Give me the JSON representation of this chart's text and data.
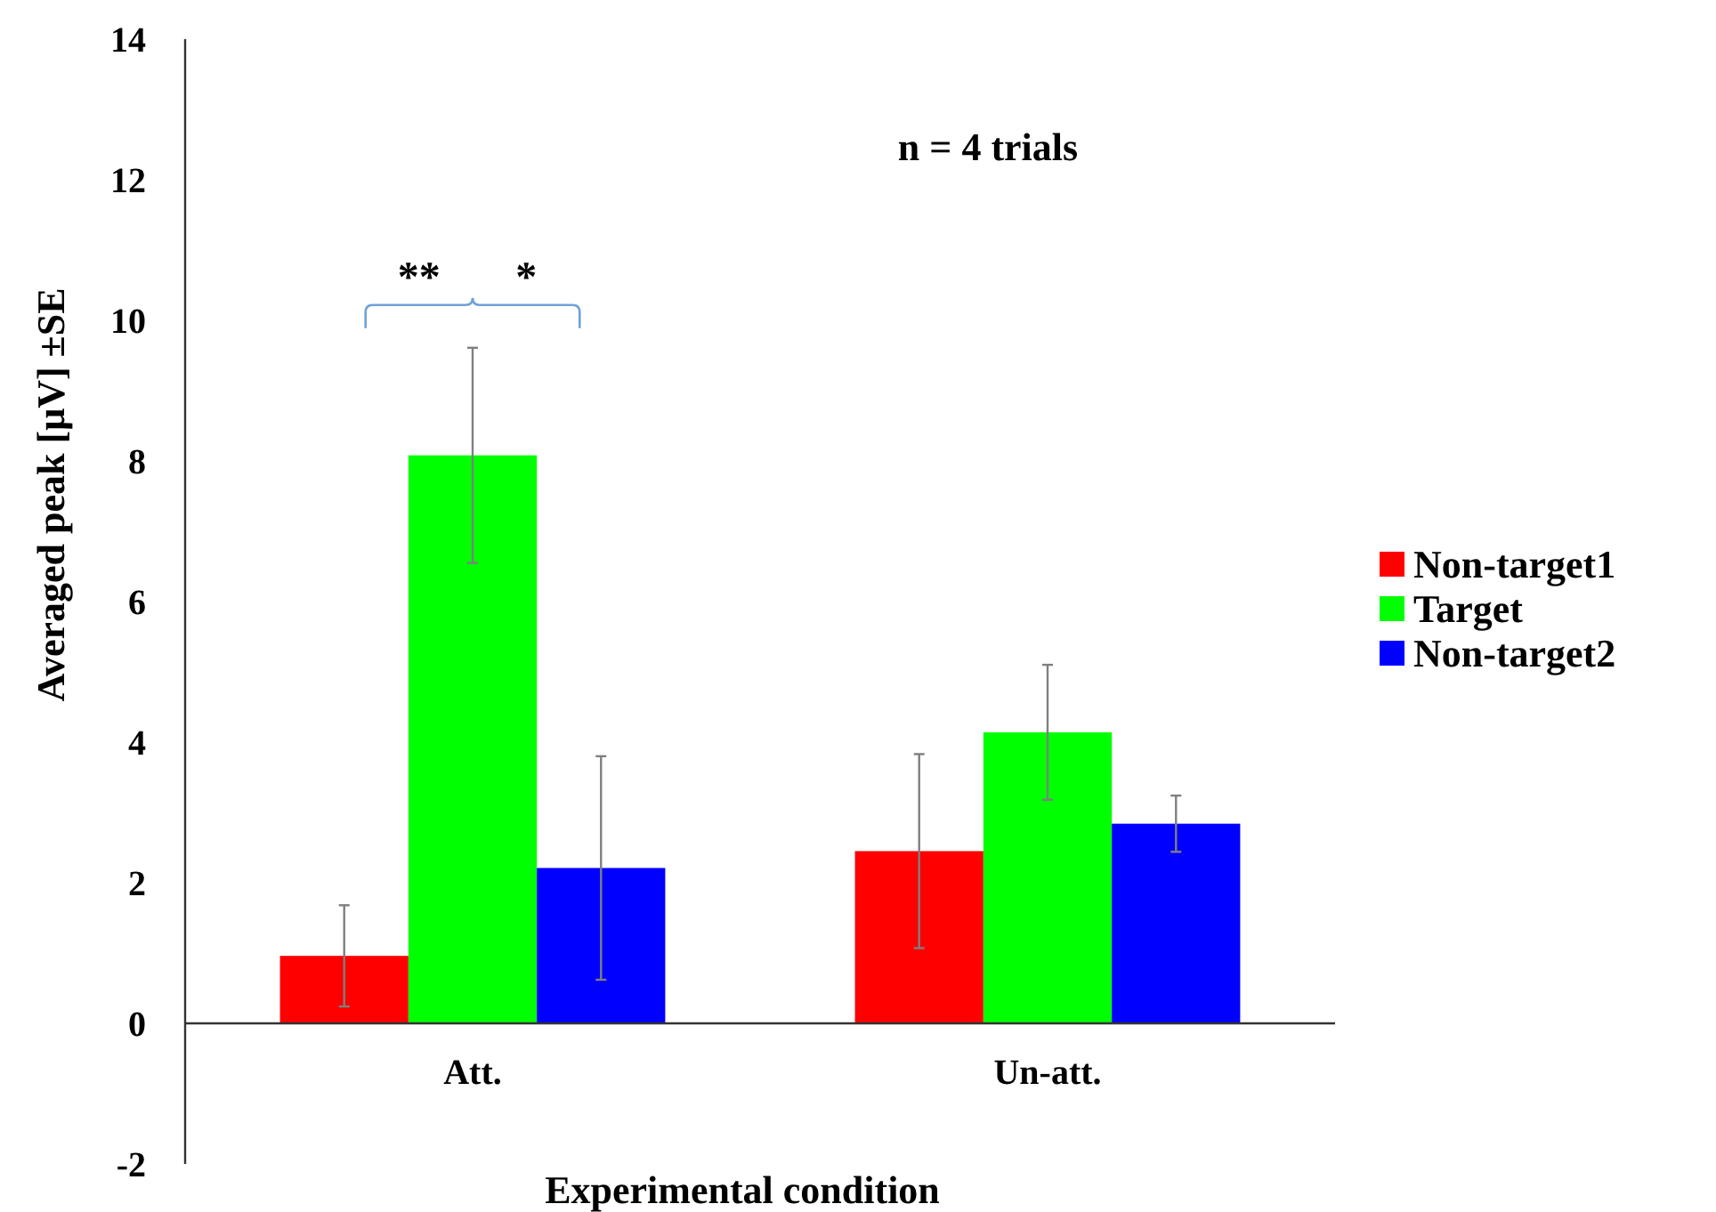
{
  "chart_data": {
    "type": "bar",
    "xlabel": "Experimental condition",
    "ylabel": "Averaged peak [μV] ±SE",
    "categories": [
      "Att.",
      "Un-att."
    ],
    "series": [
      {
        "name": "Non-target1",
        "color": "#ff0000",
        "values": [
          0.96,
          2.45
        ],
        "errors": [
          0.72,
          1.38
        ]
      },
      {
        "name": "Target",
        "color": "#00ff00",
        "values": [
          8.08,
          4.14
        ],
        "errors": [
          1.53,
          0.96
        ]
      },
      {
        "name": "Non-target2",
        "color": "#0000ff",
        "values": [
          2.21,
          2.84
        ],
        "errors": [
          1.59,
          0.4
        ]
      }
    ],
    "ylim": [
      -2,
      14
    ],
    "yticks": [
      -2,
      0,
      2,
      4,
      6,
      8,
      10,
      12,
      14
    ],
    "legend": "right",
    "annotations": [
      "n = 4 trials",
      "**",
      "*"
    ]
  }
}
